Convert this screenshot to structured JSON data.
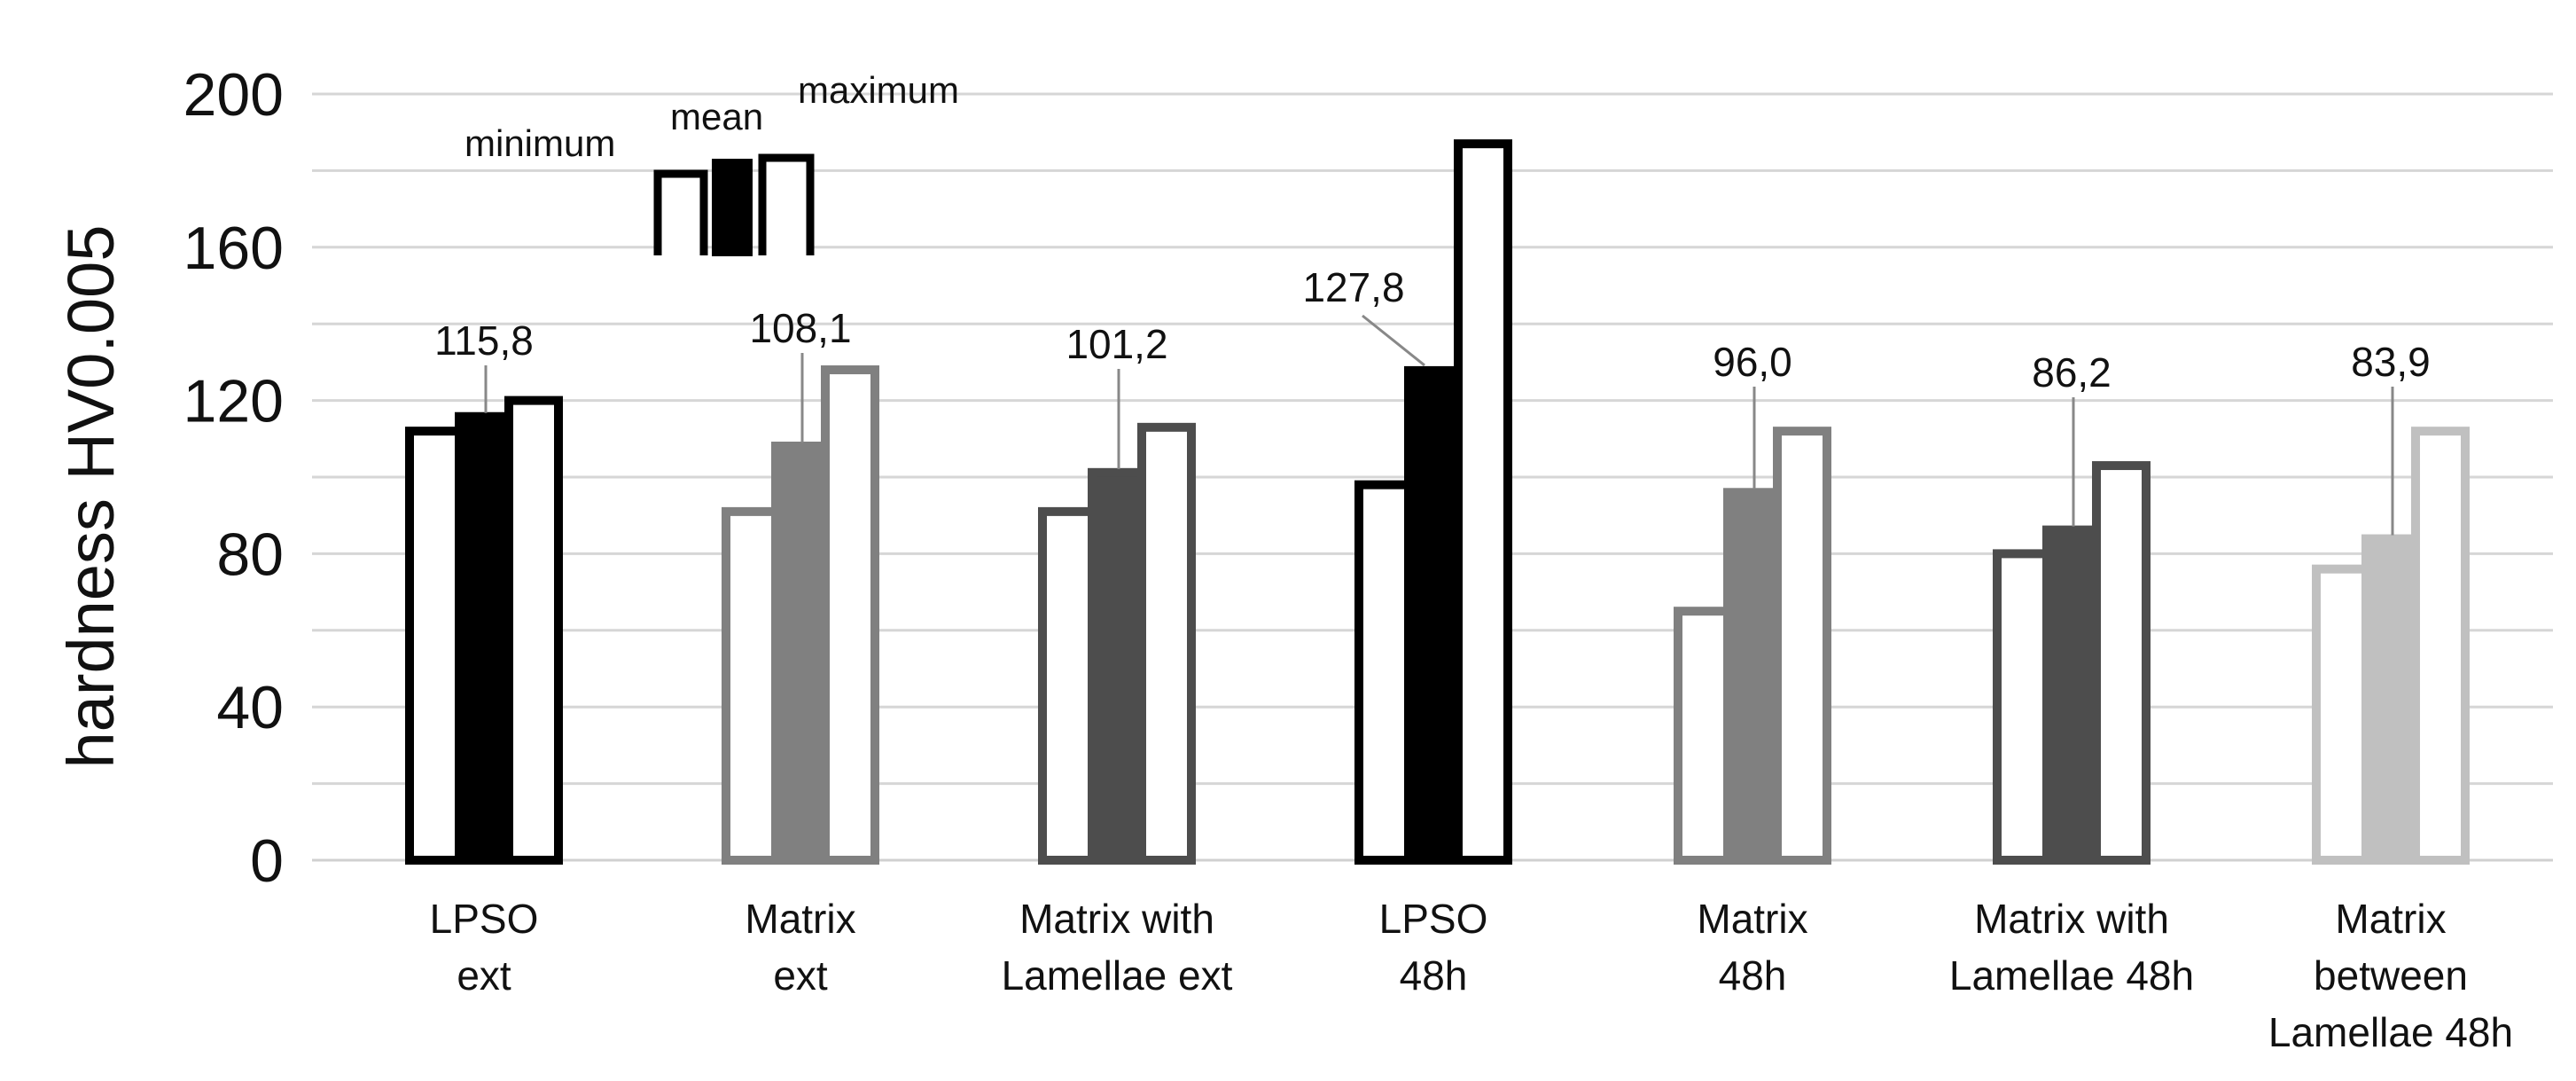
{
  "chart_data": {
    "type": "bar",
    "title": "",
    "xlabel": "",
    "ylabel": "hardness  HV0.005",
    "ylim": [
      0,
      200
    ],
    "yticks": [
      0,
      40,
      80,
      120,
      160,
      200
    ],
    "grid": true,
    "legend": {
      "position": "top-left",
      "entries": [
        "minimum",
        "mean",
        "maximum"
      ]
    },
    "categories": [
      {
        "label": [
          "LPSO",
          "ext"
        ],
        "min": 112,
        "mean": 115.8,
        "max": 120,
        "label_text": "115,8",
        "color": "#000000",
        "mean_fill": "#000000"
      },
      {
        "label": [
          "Matrix",
          "ext"
        ],
        "min": 91,
        "mean": 108.1,
        "max": 128,
        "label_text": "108,1",
        "color": "#808080",
        "mean_fill": "#808080"
      },
      {
        "label": [
          "Matrix with",
          "Lamellae ext"
        ],
        "min": 91,
        "mean": 101.2,
        "max": 113,
        "label_text": "101,2",
        "color": "#4d4d4d",
        "mean_fill": "#4d4d4d"
      },
      {
        "label": [
          "LPSO",
          "48h"
        ],
        "min": 98,
        "mean": 127.8,
        "max": 187,
        "label_text": "127,8",
        "color": "#000000",
        "mean_fill": "#000000"
      },
      {
        "label": [
          "Matrix",
          "48h"
        ],
        "min": 65,
        "mean": 96.0,
        "max": 112,
        "label_text": "96,0",
        "color": "#808080",
        "mean_fill": "#808080"
      },
      {
        "label": [
          "Matrix with",
          "Lamellae 48h"
        ],
        "min": 80,
        "mean": 86.2,
        "max": 103,
        "label_text": "86,2",
        "color": "#4d4d4d",
        "mean_fill": "#4d4d4d"
      },
      {
        "label": [
          "Matrix",
          "between",
          "Lamellae 48h"
        ],
        "min": 76,
        "mean": 83.9,
        "max": 112,
        "label_text": "83,9",
        "color": "#c0c0c0",
        "mean_fill": "#c0c0c0"
      }
    ]
  }
}
